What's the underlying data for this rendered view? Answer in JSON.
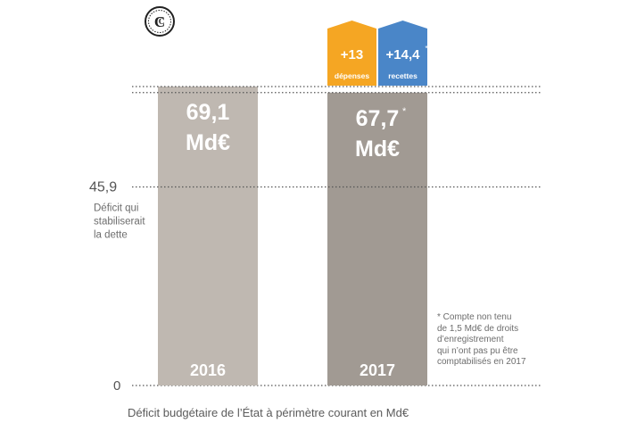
{
  "chart_data": {
    "type": "bar",
    "categories": [
      "2016",
      "2017"
    ],
    "values": [
      69.1,
      67.7
    ],
    "value_labels": [
      {
        "line1": "69,1",
        "line2": "Md€",
        "asterisk": ""
      },
      {
        "line1": "67,7",
        "line2": "Md€",
        "asterisk": "*"
      }
    ],
    "stacked_on_2017": [
      {
        "value_label": "+13",
        "sublabel": "dépenses",
        "amount": 13,
        "color": "#f5a623"
      },
      {
        "value_label": "+14,4",
        "asterisk": "*",
        "sublabel": "recettes",
        "amount": 14.4,
        "color": "#4a86c8"
      }
    ],
    "reference_line": {
      "value": 45.9,
      "label": "45,9",
      "description": [
        "Déficit qui",
        "stabiliserait",
        "la dette"
      ]
    },
    "zero_label": "0",
    "ylim": [
      0,
      69.1
    ],
    "grid": false,
    "colors": {
      "bar_2016": "#bfb8b1",
      "bar_2017": "#a19a93",
      "dotted_line": "#555555"
    },
    "xlabel": "Déficit budgétaire de l’État à périmètre courant en Md€",
    "footnote": [
      "* Compte non tenu",
      "de 1,5 Md€ de droits",
      "d’enregistrement",
      "qui n’ont pas pu être",
      "comptabilisés en 2017"
    ]
  },
  "logo_icon": "cour-des-comptes-seal-icon"
}
